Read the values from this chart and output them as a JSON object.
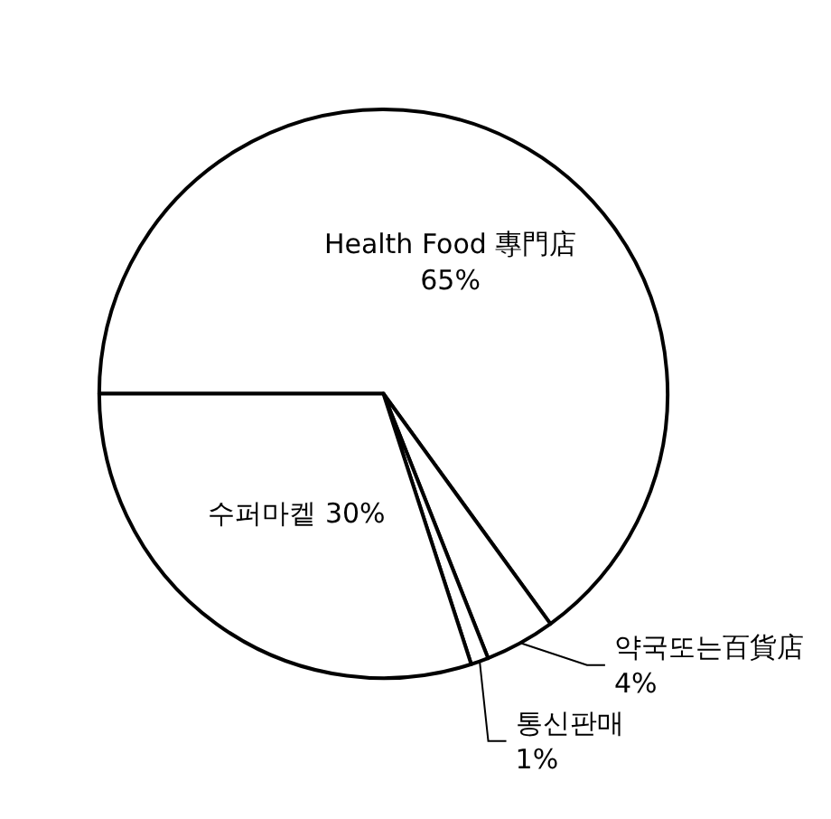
{
  "chart_data": {
    "type": "pie",
    "categories": [
      "Health Food 專門店",
      "약국또는百貨店",
      "통신판매",
      "수퍼마켙"
    ],
    "values": [
      65,
      4,
      1,
      30
    ],
    "value_labels": [
      "65%",
      "4%",
      "1%",
      "30%"
    ],
    "colors": [
      "#ffffff",
      "#ffffff",
      "#ffffff",
      "#ffffff"
    ]
  }
}
